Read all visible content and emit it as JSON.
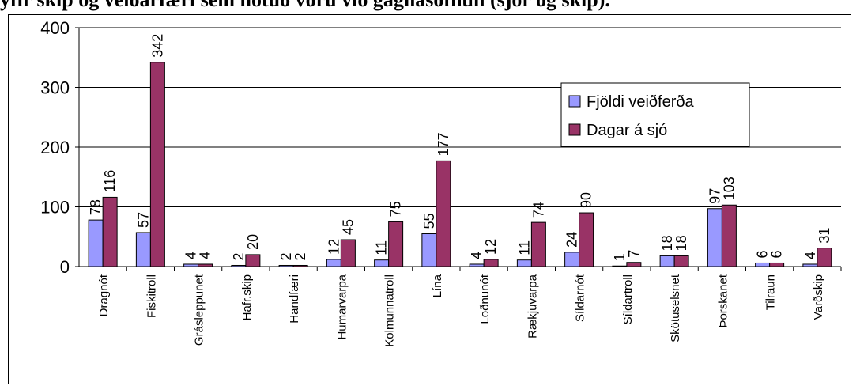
{
  "chart_data": {
    "type": "bar",
    "title": "yfir skip og veiðarfæri sem notuð voru við gagnasöfnun (sjór og skip).",
    "xlabel": "",
    "ylabel": "",
    "ylim": [
      0,
      400
    ],
    "yticks": [
      "0",
      "100",
      "200",
      "300",
      "400"
    ],
    "grid": true,
    "legend_position": "top-right",
    "categories": [
      "Dragnót",
      "Fiskitroll",
      "Grásleppunet",
      "Hafr.skip",
      "Handfæri",
      "Humarvarpa",
      "Kolmunnatroll",
      "Lína",
      "Loðnunót",
      "Rækjuvarpa",
      "Síldarnót",
      "Síldartroll",
      "Skötuselsnet",
      "Þorskanet",
      "Tilraun",
      "Varðskip"
    ],
    "series": [
      {
        "name": "Fjöldi veiðferða",
        "color": "#9999ff",
        "values": [
          78,
          57,
          4,
          2,
          2,
          12,
          11,
          55,
          4,
          11,
          24,
          1,
          18,
          97,
          6,
          4
        ]
      },
      {
        "name": "Dagar á sjó",
        "color": "#993366",
        "values": [
          116,
          342,
          4,
          20,
          2,
          45,
          75,
          177,
          12,
          74,
          90,
          7,
          18,
          103,
          6,
          31
        ]
      }
    ]
  }
}
